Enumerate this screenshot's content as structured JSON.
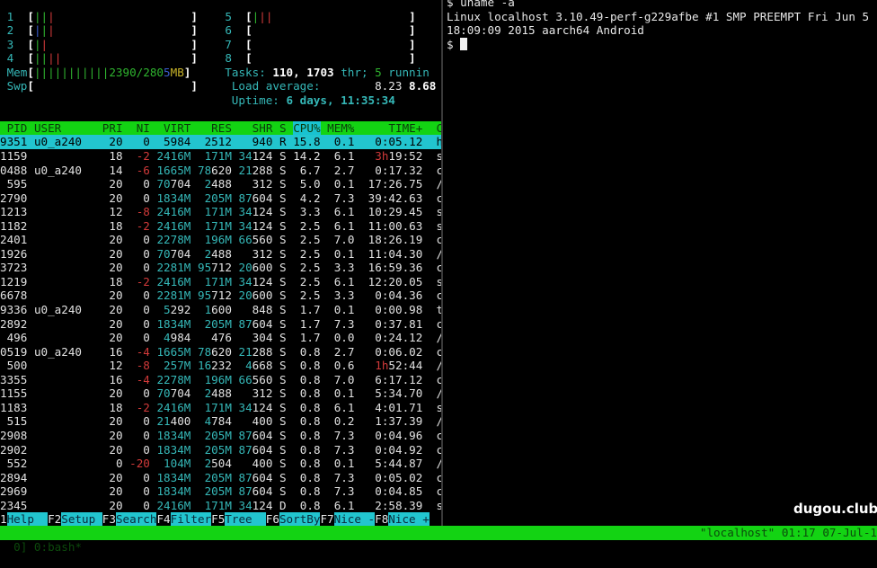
{
  "colors": {
    "header_bg": "#13d313",
    "selected_bg": "#22c5cf",
    "cyan": "#35b8b8",
    "red": "#d23a3a",
    "green": "#2fb52f"
  },
  "meters": {
    "cpus": [
      {
        "label": "1",
        "bars": [
          "g",
          "g",
          "r"
        ]
      },
      {
        "label": "2",
        "bars": [
          "bl",
          "g",
          "r"
        ]
      },
      {
        "label": "3",
        "bars": [
          "g",
          "r"
        ]
      },
      {
        "label": "4",
        "bars": [
          "g",
          "g",
          "r",
          "r"
        ]
      },
      {
        "label": "5",
        "bars": [
          "g",
          "r",
          "r"
        ]
      },
      {
        "label": "6",
        "bars": []
      },
      {
        "label": "7",
        "bars": []
      },
      {
        "label": "8",
        "bars": []
      }
    ],
    "mem": {
      "label": "Mem",
      "bars": 11,
      "used": "2390",
      "total": "2805",
      "unit": "MB"
    },
    "swp": {
      "label": "Swp"
    },
    "tasks": {
      "label": "Tasks: ",
      "count": "110, 1703",
      "thr": " thr; ",
      "running": "5",
      "running_label": " runnin"
    },
    "load": {
      "label": "Load average: ",
      "v1": "8.23",
      "v2": "8.68"
    },
    "uptime": {
      "label": "Uptime: ",
      "value": "6 days, 11:35:34"
    }
  },
  "table": {
    "columns": [
      "PID",
      "USER",
      "PRI",
      "NI",
      "VIRT",
      "RES",
      "SHR",
      "S",
      "CPU%",
      "MEM%",
      "TIME+",
      "C"
    ],
    "sort_column": "CPU%",
    "selected_index": 0,
    "rows": [
      [
        "9351",
        "u0_a240",
        "20",
        "0",
        "5984",
        "2512",
        "940",
        "R",
        "15.8",
        "0.1",
        "0:05.12",
        "h"
      ],
      [
        "1159",
        "",
        "18",
        "-2",
        "2416M",
        "171M",
        "34124",
        "S",
        "14.2",
        "6.1",
        "3h19:52",
        "s"
      ],
      [
        "0488",
        "u0_a240",
        "14",
        "-6",
        "1665M",
        "78620",
        "21288",
        "S",
        "6.7",
        "2.7",
        "0:17.32",
        "c"
      ],
      [
        "595",
        "",
        "20",
        "0",
        "70704",
        "2488",
        "312",
        "S",
        "5.0",
        "0.1",
        "17:26.75",
        "/"
      ],
      [
        "2790",
        "",
        "20",
        "0",
        "1834M",
        "205M",
        "87604",
        "S",
        "4.2",
        "7.3",
        "39:42.63",
        "c"
      ],
      [
        "1213",
        "",
        "12",
        "-8",
        "2416M",
        "171M",
        "34124",
        "S",
        "3.3",
        "6.1",
        "10:29.45",
        "s"
      ],
      [
        "1182",
        "",
        "18",
        "-2",
        "2416M",
        "171M",
        "34124",
        "S",
        "2.5",
        "6.1",
        "11:00.63",
        "s"
      ],
      [
        "2401",
        "",
        "20",
        "0",
        "2278M",
        "196M",
        "66560",
        "S",
        "2.5",
        "7.0",
        "18:26.19",
        "c"
      ],
      [
        "1926",
        "",
        "20",
        "0",
        "70704",
        "2488",
        "312",
        "S",
        "2.5",
        "0.1",
        "11:04.30",
        "/"
      ],
      [
        "3723",
        "",
        "20",
        "0",
        "2281M",
        "95712",
        "20600",
        "S",
        "2.5",
        "3.3",
        "16:59.36",
        "c"
      ],
      [
        "1219",
        "",
        "18",
        "-2",
        "2416M",
        "171M",
        "34124",
        "S",
        "2.5",
        "6.1",
        "12:20.05",
        "s"
      ],
      [
        "6678",
        "",
        "20",
        "0",
        "2281M",
        "95712",
        "20600",
        "S",
        "2.5",
        "3.3",
        "0:04.36",
        "c"
      ],
      [
        "9336",
        "u0_a240",
        "20",
        "0",
        "5292",
        "1600",
        "848",
        "S",
        "1.7",
        "0.1",
        "0:00.98",
        "t"
      ],
      [
        "2892",
        "",
        "20",
        "0",
        "1834M",
        "205M",
        "87604",
        "S",
        "1.7",
        "7.3",
        "0:37.81",
        "c"
      ],
      [
        "496",
        "",
        "20",
        "0",
        "4984",
        "476",
        "304",
        "S",
        "1.7",
        "0.0",
        "0:24.12",
        "/"
      ],
      [
        "0519",
        "u0_a240",
        "16",
        "-4",
        "1665M",
        "78620",
        "21288",
        "S",
        "0.8",
        "2.7",
        "0:06.02",
        "c"
      ],
      [
        "500",
        "",
        "12",
        "-8",
        "257M",
        "16232",
        "4668",
        "S",
        "0.8",
        "0.6",
        "1h52:44",
        "/"
      ],
      [
        "3355",
        "",
        "16",
        "-4",
        "2278M",
        "196M",
        "66560",
        "S",
        "0.8",
        "7.0",
        "6:17.12",
        "c"
      ],
      [
        "1155",
        "",
        "20",
        "0",
        "70704",
        "2488",
        "312",
        "S",
        "0.8",
        "0.1",
        "5:34.70",
        "/"
      ],
      [
        "1183",
        "",
        "18",
        "-2",
        "2416M",
        "171M",
        "34124",
        "S",
        "0.8",
        "6.1",
        "4:01.71",
        "s"
      ],
      [
        "515",
        "",
        "20",
        "0",
        "21400",
        "4784",
        "400",
        "S",
        "0.8",
        "0.2",
        "1:37.39",
        "/"
      ],
      [
        "2908",
        "",
        "20",
        "0",
        "1834M",
        "205M",
        "87604",
        "S",
        "0.8",
        "7.3",
        "0:04.96",
        "c"
      ],
      [
        "2902",
        "",
        "20",
        "0",
        "1834M",
        "205M",
        "87604",
        "S",
        "0.8",
        "7.3",
        "0:04.92",
        "c"
      ],
      [
        "552",
        "",
        "0",
        "-20",
        "104M",
        "2504",
        "400",
        "S",
        "0.8",
        "0.1",
        "5:44.87",
        "/"
      ],
      [
        "2894",
        "",
        "20",
        "0",
        "1834M",
        "205M",
        "87604",
        "S",
        "0.8",
        "7.3",
        "0:05.02",
        "c"
      ],
      [
        "2969",
        "",
        "20",
        "0",
        "1834M",
        "205M",
        "87604",
        "S",
        "0.8",
        "7.3",
        "0:04.85",
        "c"
      ],
      [
        "2345",
        "",
        "20",
        "0",
        "2416M",
        "171M",
        "34124",
        "D",
        "0.8",
        "6.1",
        "2:58.39",
        "s"
      ]
    ]
  },
  "function_bar": [
    {
      "key": "1",
      "label": "Help  "
    },
    {
      "key": "F2",
      "label": "Setup "
    },
    {
      "key": "F3",
      "label": "Search"
    },
    {
      "key": "F4",
      "label": "Filter"
    },
    {
      "key": "F5",
      "label": "Tree  "
    },
    {
      "key": "F6",
      "label": "SortBy"
    },
    {
      "key": "F7",
      "label": "Nice -"
    },
    {
      "key": "F8",
      "label": "Nice +"
    }
  ],
  "shell": {
    "lines": [
      "$ uname -a",
      "Linux localhost 3.10.49-perf-g229afbe #1 SMP PREEMPT Fri Jun 5",
      "18:09:09 2015 aarch64 Android"
    ],
    "prompt": "$ "
  },
  "status_bar": {
    "left": "0] 0:bash*",
    "right": "\"localhost\" 01:17 07-Jul-1"
  },
  "watermark": "dugou.club"
}
